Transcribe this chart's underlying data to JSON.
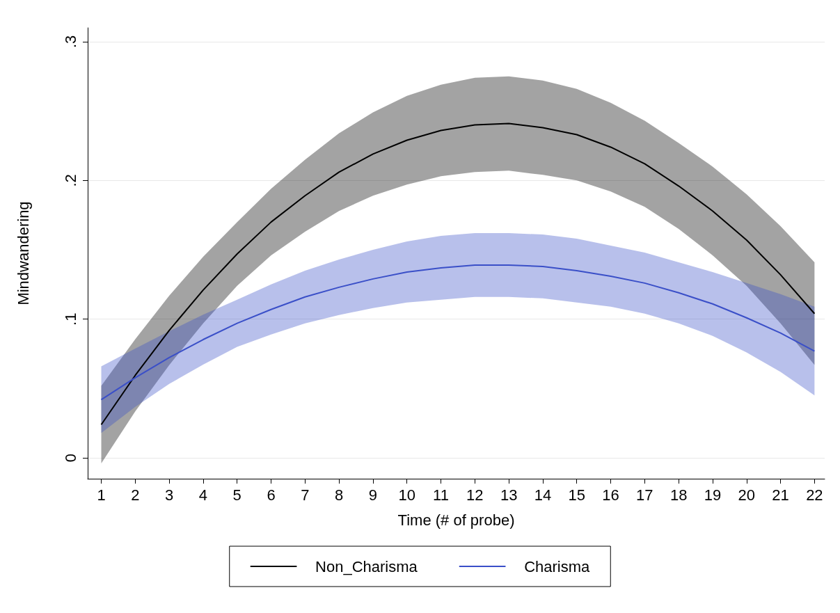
{
  "chart_data": {
    "type": "line",
    "xlabel": "Time (# of probe)",
    "ylabel": "Mindwandering",
    "x": [
      1,
      2,
      3,
      4,
      5,
      6,
      7,
      8,
      9,
      10,
      11,
      12,
      13,
      14,
      15,
      16,
      17,
      18,
      19,
      20,
      21,
      22
    ],
    "series": [
      {
        "name": "Non_Charisma",
        "color": "#000000",
        "values": [
          0.024,
          0.0595,
          0.0919,
          0.121,
          0.147,
          0.17,
          0.189,
          0.206,
          0.219,
          0.229,
          0.236,
          0.24,
          0.241,
          0.238,
          0.233,
          0.224,
          0.212,
          0.196,
          0.178,
          0.157,
          0.132,
          0.104
        ],
        "lower": [
          -0.004,
          0.0335,
          0.0669,
          0.097,
          0.124,
          0.146,
          0.163,
          0.178,
          0.189,
          0.197,
          0.203,
          0.206,
          0.207,
          0.204,
          0.2,
          0.192,
          0.181,
          0.165,
          0.146,
          0.124,
          0.097,
          0.067
        ],
        "upper": [
          0.052,
          0.0855,
          0.1169,
          0.145,
          0.17,
          0.194,
          0.215,
          0.234,
          0.249,
          0.261,
          0.269,
          0.274,
          0.275,
          0.272,
          0.266,
          0.256,
          0.243,
          0.227,
          0.21,
          0.19,
          0.167,
          0.141
        ]
      },
      {
        "name": "Charisma",
        "color": "#3a4fc8",
        "values": [
          0.042,
          0.0578,
          0.0723,
          0.0853,
          0.097,
          0.107,
          0.116,
          0.123,
          0.129,
          0.134,
          0.137,
          0.139,
          0.139,
          0.138,
          0.135,
          0.131,
          0.126,
          0.119,
          0.111,
          0.101,
          0.09,
          0.077
        ],
        "lower": [
          0.018,
          0.0368,
          0.0533,
          0.0673,
          0.08,
          0.089,
          0.097,
          0.103,
          0.108,
          0.112,
          0.114,
          0.116,
          0.116,
          0.115,
          0.112,
          0.109,
          0.104,
          0.097,
          0.088,
          0.076,
          0.062,
          0.045
        ],
        "upper": [
          0.066,
          0.0788,
          0.0913,
          0.1033,
          0.114,
          0.125,
          0.135,
          0.143,
          0.15,
          0.156,
          0.16,
          0.162,
          0.162,
          0.161,
          0.158,
          0.153,
          0.148,
          0.141,
          0.134,
          0.126,
          0.118,
          0.109
        ]
      }
    ],
    "xlim": [
      0.6,
      22.3
    ],
    "xticks": [
      1,
      2,
      3,
      4,
      5,
      6,
      7,
      8,
      9,
      10,
      11,
      12,
      13,
      14,
      15,
      16,
      17,
      18,
      19,
      20,
      21,
      22
    ],
    "ylim": [
      -0.015,
      0.31
    ],
    "yticks": [
      0,
      {
        "value": 0.1,
        "label": ".1"
      },
      {
        "value": 0.2,
        "label": ".2"
      },
      {
        "value": 0.3,
        "label": ".3"
      }
    ],
    "grid": "y",
    "legend": "bottom",
    "marker": "none",
    "line_style": "solid"
  }
}
